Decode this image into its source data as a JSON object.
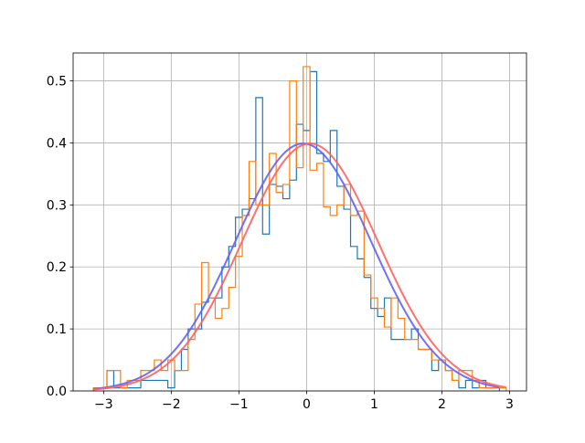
{
  "chart_data": {
    "type": "histogram",
    "title": "",
    "xlabel": "",
    "ylabel": "",
    "xlim": [
      -3.45,
      3.25
    ],
    "ylim": [
      0.0,
      0.545
    ],
    "grid": true,
    "legend": "none",
    "x_ticks": [
      -3,
      -2,
      -1,
      0,
      1,
      2,
      3
    ],
    "x_tick_labels": [
      "−3",
      "−2",
      "−1",
      "0",
      "1",
      "2",
      "3"
    ],
    "y_ticks": [
      0.0,
      0.1,
      0.2,
      0.3,
      0.4,
      0.5
    ],
    "y_tick_labels": [
      "0.0",
      "0.1",
      "0.2",
      "0.3",
      "0.4",
      "0.5"
    ],
    "histograms": [
      {
        "color": "#1f77b4",
        "edges": [
          -3.15,
          -3.05,
          -2.95,
          -2.85,
          -2.75,
          -2.65,
          -2.55,
          -2.45,
          -2.35,
          -2.25,
          -2.15,
          -2.05,
          -1.95,
          -1.85,
          -1.75,
          -1.65,
          -1.55,
          -1.45,
          -1.35,
          -1.25,
          -1.15,
          -1.05,
          -0.95,
          -0.85,
          -0.75,
          -0.65,
          -0.55,
          -0.45,
          -0.35,
          -0.25,
          -0.15,
          -0.05,
          0.05,
          0.15,
          0.25,
          0.35,
          0.45,
          0.55,
          0.65,
          0.75,
          0.85,
          0.95,
          1.05,
          1.15,
          1.25,
          1.35,
          1.45,
          1.55,
          1.65,
          1.75,
          1.85,
          1.95,
          2.05,
          2.15,
          2.25,
          2.35,
          2.45,
          2.55,
          2.65,
          2.75,
          2.85
        ],
        "values": [
          0.005,
          0.005,
          0.033,
          0.005,
          0.005,
          0.005,
          0.005,
          0.017,
          0.017,
          0.017,
          0.017,
          0.005,
          0.033,
          0.067,
          0.1,
          0.1,
          0.143,
          0.15,
          0.15,
          0.2,
          0.233,
          0.28,
          0.293,
          0.31,
          0.473,
          0.253,
          0.333,
          0.33,
          0.31,
          0.34,
          0.43,
          0.42,
          0.515,
          0.383,
          0.37,
          0.42,
          0.33,
          0.293,
          0.233,
          0.213,
          0.183,
          0.133,
          0.12,
          0.15,
          0.083,
          0.083,
          0.083,
          0.1,
          0.067,
          0.067,
          0.033,
          0.05,
          0.033,
          0.017,
          0.005,
          0.017,
          0.005,
          0.017,
          0.005,
          0.005
        ]
      },
      {
        "color": "#ff7f0e",
        "edges": [
          -3.15,
          -3.05,
          -2.95,
          -2.85,
          -2.75,
          -2.65,
          -2.55,
          -2.45,
          -2.35,
          -2.25,
          -2.15,
          -2.05,
          -1.95,
          -1.85,
          -1.75,
          -1.65,
          -1.55,
          -1.45,
          -1.35,
          -1.25,
          -1.15,
          -1.05,
          -0.95,
          -0.85,
          -0.75,
          -0.65,
          -0.55,
          -0.45,
          -0.35,
          -0.25,
          -0.15,
          -0.05,
          0.05,
          0.15,
          0.25,
          0.35,
          0.45,
          0.55,
          0.65,
          0.75,
          0.85,
          0.95,
          1.05,
          1.15,
          1.25,
          1.35,
          1.45,
          1.55,
          1.65,
          1.75,
          1.85,
          1.95,
          2.05,
          2.15,
          2.25,
          2.35,
          2.45,
          2.55,
          2.65,
          2.75,
          2.85,
          2.95
        ],
        "values": [
          0.005,
          0.005,
          0.033,
          0.033,
          0.005,
          0.017,
          0.017,
          0.033,
          0.033,
          0.05,
          0.033,
          0.05,
          0.033,
          0.033,
          0.083,
          0.14,
          0.207,
          0.15,
          0.117,
          0.133,
          0.167,
          0.217,
          0.283,
          0.37,
          0.3,
          0.3,
          0.383,
          0.32,
          0.333,
          0.5,
          0.36,
          0.523,
          0.356,
          0.367,
          0.297,
          0.283,
          0.3,
          0.333,
          0.283,
          0.29,
          0.187,
          0.15,
          0.133,
          0.103,
          0.15,
          0.117,
          0.083,
          0.083,
          0.067,
          0.067,
          0.05,
          0.05,
          0.033,
          0.017,
          0.033,
          0.033,
          0.017,
          0.005,
          0.005,
          0.005,
          0.005
        ]
      }
    ],
    "curves": [
      {
        "type": "normal_pdf",
        "mean": -0.05,
        "sd": 1.0,
        "color": "#6060ff",
        "x_range": [
          -3.15,
          2.85
        ]
      },
      {
        "type": "normal_pdf",
        "mean": 0.05,
        "sd": 1.0,
        "color": "#ff6060",
        "x_range": [
          -3.15,
          2.95
        ]
      }
    ]
  }
}
